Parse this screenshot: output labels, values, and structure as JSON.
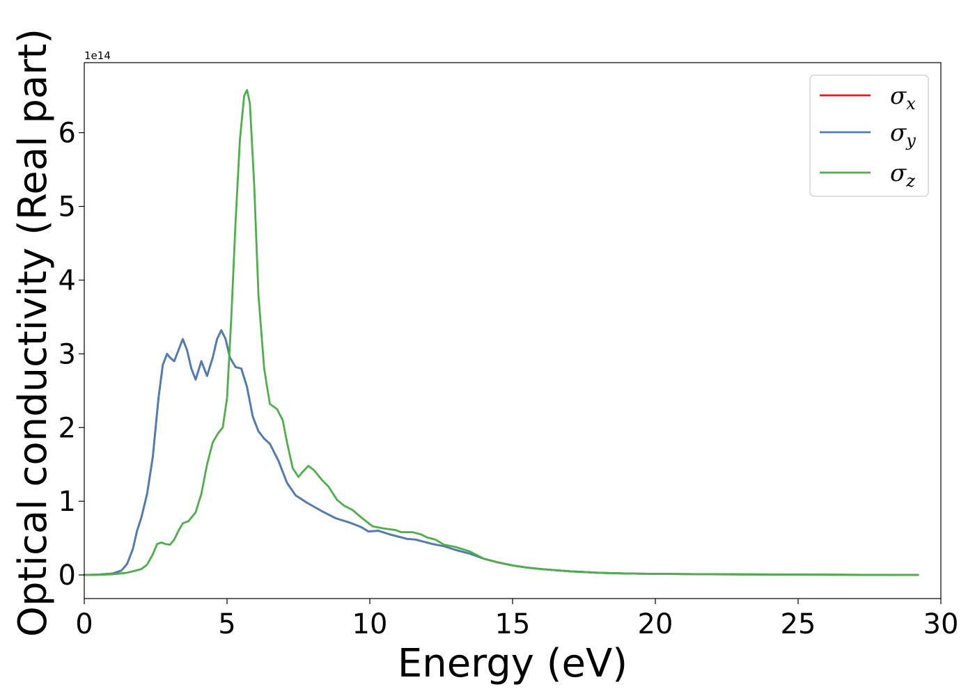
{
  "chart_data": {
    "type": "line",
    "title": "",
    "xlabel": "Energy (eV)",
    "ylabel": "Optical conductivity (Real part)",
    "y_offset_label": "1e14",
    "y_scale_factor": 100000000000000.0,
    "xlim": [
      0,
      30
    ],
    "ylim": [
      -0.32,
      6.95
    ],
    "xticks": [
      0,
      5,
      10,
      15,
      20,
      25,
      30
    ],
    "yticks": [
      0,
      1,
      2,
      3,
      4,
      5,
      6
    ],
    "grid": false,
    "legend_position": "top-right",
    "series": [
      {
        "name": "σx",
        "legend_base": "σ",
        "legend_sub": "x",
        "color": "#e41a1c",
        "x": [
          0,
          0.5,
          1.0,
          1.3,
          1.5,
          1.7,
          1.85,
          2.0,
          2.2,
          2.4,
          2.6,
          2.75,
          2.9,
          3.0,
          3.15,
          3.3,
          3.45,
          3.6,
          3.75,
          3.9,
          4.1,
          4.3,
          4.5,
          4.65,
          4.8,
          4.95,
          5.1,
          5.3,
          5.5,
          5.7,
          5.9,
          6.1,
          6.3,
          6.5,
          6.8,
          7.1,
          7.4,
          7.8,
          8.3,
          8.8,
          9.3,
          9.7,
          9.95,
          10.3,
          10.7,
          11.0,
          11.3,
          11.6,
          11.9,
          12.2,
          12.6,
          13.0,
          13.5,
          14.0,
          14.5,
          15.0,
          15.5,
          16.0,
          17.0,
          18.0,
          19.0,
          20.0,
          22.0,
          25.0,
          29.2
        ],
        "y": [
          0.0,
          0.005,
          0.02,
          0.06,
          0.15,
          0.35,
          0.6,
          0.78,
          1.1,
          1.6,
          2.4,
          2.85,
          3.0,
          2.95,
          2.9,
          3.05,
          3.2,
          3.05,
          2.8,
          2.65,
          2.9,
          2.7,
          2.95,
          3.2,
          3.32,
          3.2,
          2.95,
          2.82,
          2.8,
          2.55,
          2.15,
          1.95,
          1.85,
          1.78,
          1.55,
          1.25,
          1.08,
          0.98,
          0.87,
          0.77,
          0.71,
          0.65,
          0.59,
          0.6,
          0.55,
          0.52,
          0.49,
          0.48,
          0.45,
          0.42,
          0.39,
          0.34,
          0.29,
          0.22,
          0.17,
          0.13,
          0.1,
          0.08,
          0.05,
          0.03,
          0.02,
          0.015,
          0.01,
          0.005,
          0.0
        ]
      },
      {
        "name": "σy",
        "legend_base": "σ",
        "legend_sub": "y",
        "color": "#4a7fb4",
        "x": [
          0,
          0.5,
          1.0,
          1.3,
          1.5,
          1.7,
          1.85,
          2.0,
          2.2,
          2.4,
          2.6,
          2.75,
          2.9,
          3.0,
          3.15,
          3.3,
          3.45,
          3.6,
          3.75,
          3.9,
          4.1,
          4.3,
          4.5,
          4.65,
          4.8,
          4.95,
          5.1,
          5.3,
          5.5,
          5.7,
          5.9,
          6.1,
          6.3,
          6.5,
          6.8,
          7.1,
          7.4,
          7.8,
          8.3,
          8.8,
          9.3,
          9.7,
          9.95,
          10.3,
          10.7,
          11.0,
          11.3,
          11.6,
          11.9,
          12.2,
          12.6,
          13.0,
          13.5,
          14.0,
          14.5,
          15.0,
          15.5,
          16.0,
          17.0,
          18.0,
          19.0,
          20.0,
          22.0,
          25.0,
          29.2
        ],
        "y": [
          0.0,
          0.005,
          0.02,
          0.06,
          0.15,
          0.35,
          0.6,
          0.78,
          1.1,
          1.6,
          2.4,
          2.85,
          3.0,
          2.95,
          2.9,
          3.05,
          3.2,
          3.05,
          2.8,
          2.65,
          2.9,
          2.7,
          2.95,
          3.2,
          3.32,
          3.2,
          2.95,
          2.82,
          2.8,
          2.55,
          2.15,
          1.95,
          1.85,
          1.78,
          1.55,
          1.25,
          1.08,
          0.98,
          0.87,
          0.77,
          0.71,
          0.65,
          0.59,
          0.6,
          0.55,
          0.52,
          0.49,
          0.48,
          0.45,
          0.42,
          0.39,
          0.34,
          0.29,
          0.22,
          0.17,
          0.13,
          0.1,
          0.08,
          0.05,
          0.03,
          0.02,
          0.015,
          0.01,
          0.005,
          0.0
        ]
      },
      {
        "name": "σz",
        "legend_base": "σ",
        "legend_sub": "z",
        "color": "#4daf4a",
        "x": [
          0,
          0.5,
          1.0,
          1.5,
          2.0,
          2.2,
          2.4,
          2.55,
          2.7,
          2.85,
          3.0,
          3.15,
          3.3,
          3.45,
          3.65,
          3.9,
          4.1,
          4.3,
          4.5,
          4.7,
          4.85,
          5.0,
          5.15,
          5.3,
          5.45,
          5.6,
          5.7,
          5.8,
          5.95,
          6.1,
          6.3,
          6.5,
          6.75,
          6.95,
          7.1,
          7.3,
          7.5,
          7.65,
          7.85,
          8.05,
          8.3,
          8.55,
          8.85,
          9.1,
          9.4,
          9.7,
          10.1,
          10.5,
          10.9,
          11.1,
          11.5,
          11.8,
          12.0,
          12.3,
          12.6,
          13.0,
          13.5,
          14.0,
          14.5,
          15.0,
          15.5,
          16.0,
          17.0,
          18.0,
          19.0,
          20.0,
          22.0,
          25.0,
          29.2
        ],
        "y": [
          0.0,
          0.002,
          0.01,
          0.03,
          0.08,
          0.14,
          0.28,
          0.42,
          0.44,
          0.42,
          0.41,
          0.48,
          0.6,
          0.7,
          0.73,
          0.85,
          1.1,
          1.5,
          1.8,
          1.93,
          2.0,
          2.4,
          3.5,
          4.8,
          5.9,
          6.5,
          6.58,
          6.4,
          5.3,
          3.8,
          2.8,
          2.32,
          2.25,
          2.1,
          1.8,
          1.45,
          1.33,
          1.4,
          1.48,
          1.42,
          1.3,
          1.2,
          1.02,
          0.94,
          0.88,
          0.78,
          0.66,
          0.63,
          0.61,
          0.58,
          0.58,
          0.55,
          0.51,
          0.48,
          0.41,
          0.38,
          0.32,
          0.22,
          0.17,
          0.13,
          0.1,
          0.08,
          0.05,
          0.03,
          0.02,
          0.015,
          0.01,
          0.005,
          0.0
        ]
      }
    ]
  }
}
